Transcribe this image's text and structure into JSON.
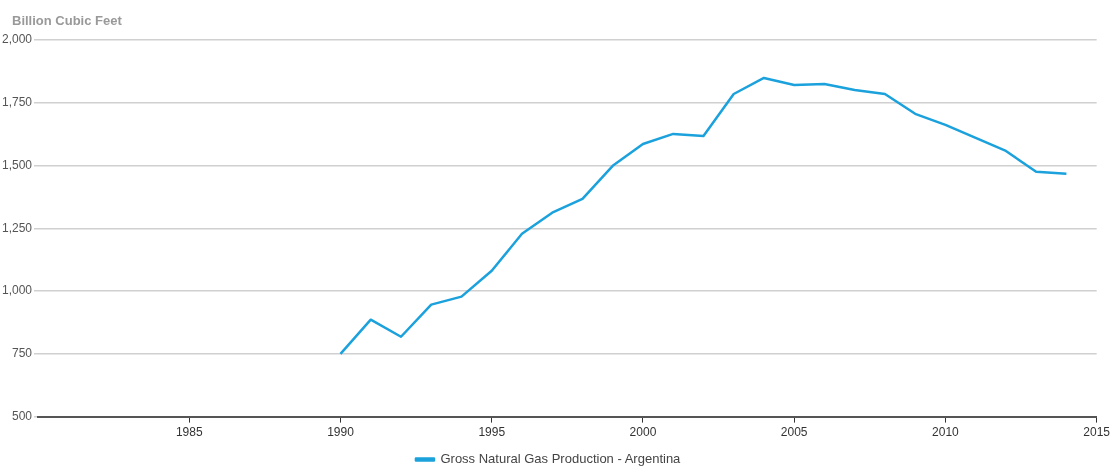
{
  "chart_data": {
    "type": "line",
    "ylabel": "Billion Cubic Feet",
    "x": [
      1990,
      1991,
      1992,
      1993,
      1994,
      1995,
      1996,
      1997,
      1998,
      1999,
      2000,
      2001,
      2002,
      2003,
      2004,
      2005,
      2006,
      2007,
      2008,
      2009,
      2010,
      2011,
      2012,
      2013,
      2014
    ],
    "series": [
      {
        "name": "Gross Natural Gas Production - Argentina",
        "color": "#1ba1dc",
        "values": [
          750,
          886,
          818,
          946,
          978,
          1081,
          1228,
          1312,
          1367,
          1499,
          1586,
          1626,
          1618,
          1785,
          1849,
          1821,
          1825,
          1801,
          1785,
          1706,
          1662,
          1610,
          1558,
          1475,
          1467
        ]
      }
    ],
    "xlim": [
      1980,
      2015
    ],
    "xticks": [
      1985,
      1990,
      1995,
      2000,
      2005,
      2010,
      2015
    ],
    "ylim": [
      500,
      2000
    ],
    "yticks": [
      500,
      {
        "value": 750,
        "label": "750"
      },
      {
        "value": 1000,
        "label": "1,000"
      },
      {
        "value": 1250,
        "label": "1,250"
      },
      {
        "value": 1500,
        "label": "1,500"
      },
      {
        "value": 1750,
        "label": "1,750"
      },
      {
        "value": 2000,
        "label": "2,000"
      }
    ],
    "grid": "y",
    "legend": "bottom",
    "marker": "none",
    "line_style": "solid"
  }
}
